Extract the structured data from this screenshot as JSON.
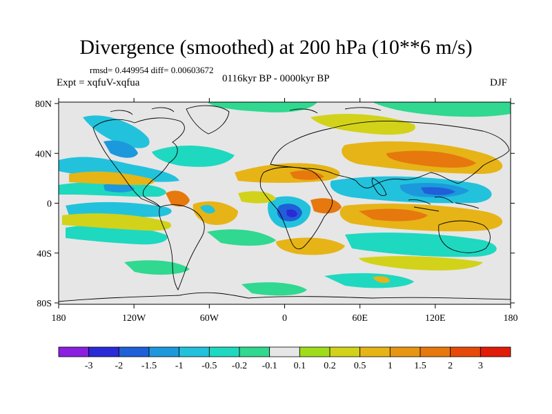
{
  "title": "Divergence (smoothed) at 200 hPa (10**6 m/s)",
  "stats": "rmsd= 0.449954 diff= 0.00603672",
  "experiment": "Expt = xqfuV-xqfua",
  "period": "0116kyr BP - 0000kyr BP",
  "season": "DJF",
  "axes": {
    "lon_labels": [
      "180",
      "120W",
      "60W",
      "0",
      "60E",
      "120E",
      "180"
    ],
    "lat_labels": [
      "80N",
      "40N",
      "0",
      "40S",
      "80S"
    ]
  },
  "colorbar": {
    "labels": [
      "-3",
      "-2",
      "-1.5",
      "-1",
      "-0.5",
      "-0.2",
      "-0.1",
      "0.1",
      "0.2",
      "0.5",
      "1",
      "1.5",
      "2",
      "3"
    ],
    "colors": [
      "#8a1fe0",
      "#2a2ad6",
      "#1f5fd8",
      "#1c98dc",
      "#22c2dc",
      "#1fd8c0",
      "#30d890",
      "#e6e6e6",
      "#a0dc1c",
      "#d2d21a",
      "#e6b416",
      "#e69612",
      "#e6780e",
      "#e64a0a",
      "#e01c08"
    ]
  },
  "colors": {
    "background": "#e6e6e6",
    "coast": "#000000"
  }
}
